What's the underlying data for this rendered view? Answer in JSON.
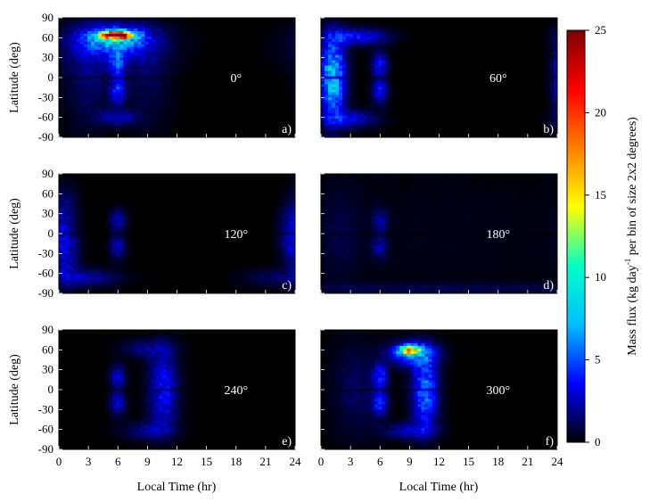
{
  "chart_data": {
    "type": "heatmap",
    "x_label": "Local Time (hr)",
    "y_label": "Latitude (deg)",
    "x_ticks": [
      "0",
      "3",
      "6",
      "9",
      "12",
      "15",
      "18",
      "21",
      "24"
    ],
    "y_ticks": [
      "90",
      "60",
      "30",
      "0",
      "-30",
      "-60",
      "-90"
    ],
    "xlim": [
      0,
      24
    ],
    "ylim": [
      -90,
      90
    ],
    "colorbar": {
      "label_main": "Mass flux (kg day",
      "label_sup": "-1",
      "label_rest": " per bin of size 2x2 degrees)",
      "ticks": [
        "0",
        "5",
        "10",
        "15",
        "20",
        "25"
      ],
      "range": [
        0,
        25
      ],
      "colormap": [
        "#000000",
        "#0000ff",
        "#00bfff",
        "#00ffc8",
        "#ffff00",
        "#ff8000",
        "#ff0000",
        "#800000"
      ]
    },
    "panels": [
      {
        "letter": "a)",
        "angle": "0°",
        "blobs": [
          {
            "x": 5.9,
            "y": 64,
            "sx": 1.1,
            "sy": 4,
            "v": 23
          },
          {
            "x": 5.7,
            "y": 58,
            "sx": 2.4,
            "sy": 14,
            "v": 6
          },
          {
            "x": 5.5,
            "y": 45,
            "sx": 3.8,
            "sy": 26,
            "v": 1.6
          },
          {
            "x": 6.0,
            "y": 20,
            "sx": 0.55,
            "sy": 13,
            "v": 4
          },
          {
            "x": 6.0,
            "y": -20,
            "sx": 0.55,
            "sy": 13,
            "v": 4
          },
          {
            "x": 6.0,
            "y": -60,
            "sx": 1.3,
            "sy": 8,
            "v": 2.5
          },
          {
            "x": 3.0,
            "y": 0,
            "sx": 1.6,
            "sy": 55,
            "v": 1.3
          },
          {
            "x": 9.0,
            "y": 0,
            "sx": 1.6,
            "sy": 55,
            "v": 1.0
          }
        ]
      },
      {
        "letter": "b)",
        "angle": "60°",
        "blobs": [
          {
            "x": 1.2,
            "y": 20,
            "sx": 0.9,
            "sy": 35,
            "v": 4.5
          },
          {
            "x": 1.2,
            "y": -20,
            "sx": 0.9,
            "sy": 35,
            "v": 4.5
          },
          {
            "x": 3.0,
            "y": 62,
            "sx": 1.8,
            "sy": 9,
            "v": 3
          },
          {
            "x": 3.0,
            "y": -62,
            "sx": 1.8,
            "sy": 9,
            "v": 3
          },
          {
            "x": 5.5,
            "y": 62,
            "sx": 1.5,
            "sy": 8,
            "v": 1.5
          },
          {
            "x": 6.0,
            "y": 20,
            "sx": 0.55,
            "sy": 13,
            "v": 3.5
          },
          {
            "x": 6.0,
            "y": -20,
            "sx": 0.55,
            "sy": 13,
            "v": 3.5
          }
        ]
      },
      {
        "letter": "c)",
        "angle": "120°",
        "blobs": [
          {
            "x": 0.8,
            "y": -25,
            "sx": 0.9,
            "sy": 35,
            "v": 2.5
          },
          {
            "x": 3.0,
            "y": -66,
            "sx": 2.2,
            "sy": 9,
            "v": 2.2
          },
          {
            "x": 0.8,
            "y": 45,
            "sx": 0.8,
            "sy": 20,
            "v": 1.2
          },
          {
            "x": 6.0,
            "y": 20,
            "sx": 0.55,
            "sy": 12,
            "v": 2.5
          },
          {
            "x": 6.0,
            "y": -20,
            "sx": 0.55,
            "sy": 12,
            "v": 2.5
          },
          {
            "x": 23.5,
            "y": 0,
            "sx": 0.8,
            "sy": 30,
            "v": 2.2
          },
          {
            "x": 21.5,
            "y": -66,
            "sx": 2,
            "sy": 9,
            "v": 1.2
          }
        ]
      },
      {
        "letter": "d)",
        "angle": "180°",
        "blobs": [
          {
            "x": 6.0,
            "y": 20,
            "sx": 0.55,
            "sy": 12,
            "v": 2
          },
          {
            "x": 6.0,
            "y": -20,
            "sx": 0.55,
            "sy": 12,
            "v": 2
          },
          {
            "x": 2.0,
            "y": 0,
            "sx": 1.5,
            "sy": 50,
            "v": 0.7
          },
          {
            "x": 12,
            "y": 0,
            "sx": 14,
            "sy": 80,
            "v": 0.25
          },
          {
            "x": 12,
            "y": -82,
            "sx": 14,
            "sy": 6,
            "v": 0.9
          }
        ]
      },
      {
        "letter": "e)",
        "angle": "240°",
        "blobs": [
          {
            "x": 10.6,
            "y": 25,
            "sx": 1.0,
            "sy": 30,
            "v": 2.5
          },
          {
            "x": 10.6,
            "y": -25,
            "sx": 1.0,
            "sy": 30,
            "v": 2.5
          },
          {
            "x": 9.0,
            "y": 62,
            "sx": 1.8,
            "sy": 9,
            "v": 1.8
          },
          {
            "x": 9.0,
            "y": -62,
            "sx": 1.8,
            "sy": 9,
            "v": 1.8
          },
          {
            "x": 6.0,
            "y": 20,
            "sx": 0.55,
            "sy": 12,
            "v": 3
          },
          {
            "x": 6.0,
            "y": -20,
            "sx": 0.55,
            "sy": 12,
            "v": 3
          }
        ]
      },
      {
        "letter": "f)",
        "angle": "300°",
        "blobs": [
          {
            "x": 9.0,
            "y": 60,
            "sx": 0.7,
            "sy": 4,
            "v": 16
          },
          {
            "x": 9.3,
            "y": 55,
            "sx": 1.6,
            "sy": 12,
            "v": 6
          },
          {
            "x": 10.6,
            "y": 15,
            "sx": 0.9,
            "sy": 30,
            "v": 4
          },
          {
            "x": 10.6,
            "y": -25,
            "sx": 0.9,
            "sy": 30,
            "v": 3
          },
          {
            "x": 9.0,
            "y": -62,
            "sx": 1.8,
            "sy": 9,
            "v": 2.5
          },
          {
            "x": 6.0,
            "y": 20,
            "sx": 0.55,
            "sy": 13,
            "v": 4
          },
          {
            "x": 6.0,
            "y": -20,
            "sx": 0.55,
            "sy": 13,
            "v": 4
          },
          {
            "x": 3.5,
            "y": 0,
            "sx": 1.6,
            "sy": 50,
            "v": 1.2
          }
        ]
      }
    ]
  }
}
